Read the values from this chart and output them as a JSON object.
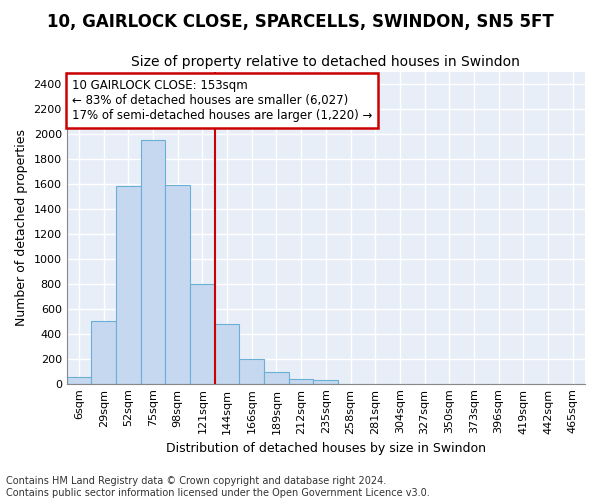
{
  "title_line1": "10, GAIRLOCK CLOSE, SPARCELLS, SWINDON, SN5 5FT",
  "title_line2": "Size of property relative to detached houses in Swindon",
  "xlabel": "Distribution of detached houses by size in Swindon",
  "ylabel": "Number of detached properties",
  "footnote1": "Contains HM Land Registry data © Crown copyright and database right 2024.",
  "footnote2": "Contains public sector information licensed under the Open Government Licence v3.0.",
  "bar_labels": [
    "6sqm",
    "29sqm",
    "52sqm",
    "75sqm",
    "98sqm",
    "121sqm",
    "144sqm",
    "166sqm",
    "189sqm",
    "212sqm",
    "235sqm",
    "258sqm",
    "281sqm",
    "304sqm",
    "327sqm",
    "350sqm",
    "373sqm",
    "396sqm",
    "419sqm",
    "442sqm",
    "465sqm"
  ],
  "bar_values": [
    50,
    500,
    1580,
    1950,
    1590,
    800,
    480,
    200,
    90,
    40,
    30,
    0,
    0,
    0,
    0,
    0,
    0,
    0,
    0,
    0,
    0
  ],
  "bar_color": "#c5d8f0",
  "bar_edgecolor": "#6baed6",
  "vline_color": "#cc0000",
  "annotation_line1": "10 GAIRLOCK CLOSE: 153sqm",
  "annotation_line2": "← 83% of detached houses are smaller (6,027)",
  "annotation_line3": "17% of semi-detached houses are larger (1,220) →",
  "annotation_box_color": "#cc0000",
  "ylim_max": 2500,
  "yticks": [
    0,
    200,
    400,
    600,
    800,
    1000,
    1200,
    1400,
    1600,
    1800,
    2000,
    2200,
    2400
  ],
  "fig_bg_color": "#ffffff",
  "plot_bg_color": "#e8eef8",
  "grid_color": "#ffffff",
  "title1_fontsize": 12,
  "title2_fontsize": 10,
  "axis_label_fontsize": 9,
  "tick_fontsize": 8,
  "footnote_fontsize": 7
}
